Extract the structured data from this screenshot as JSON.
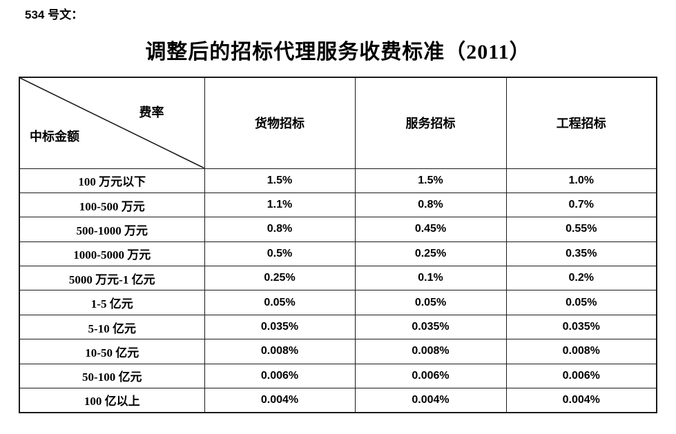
{
  "doc_label": "534 号文：",
  "title": "调整后的招标代理服务收费标准（2011）",
  "table": {
    "corner": {
      "top_right": "费率",
      "bottom_left": "中标金额"
    },
    "columns": [
      "货物招标",
      "服务招标",
      "工程招标"
    ],
    "rows": [
      {
        "label": "100 万元以下",
        "values": [
          "1.5%",
          "1.5%",
          "1.0%"
        ]
      },
      {
        "label": "100-500 万元",
        "values": [
          "1.1%",
          "0.8%",
          "0.7%"
        ]
      },
      {
        "label": "500-1000 万元",
        "values": [
          "0.8%",
          "0.45%",
          "0.55%"
        ]
      },
      {
        "label": "1000-5000 万元",
        "values": [
          "0.5%",
          "0.25%",
          "0.35%"
        ]
      },
      {
        "label": "5000 万元-1 亿元",
        "values": [
          "0.25%",
          "0.1%",
          "0.2%"
        ]
      },
      {
        "label": "1-5 亿元",
        "values": [
          "0.05%",
          "0.05%",
          "0.05%"
        ]
      },
      {
        "label": "5-10 亿元",
        "values": [
          "0.035%",
          "0.035%",
          "0.035%"
        ]
      },
      {
        "label": "10-50 亿元",
        "values": [
          "0.008%",
          "0.008%",
          "0.008%"
        ]
      },
      {
        "label": "50-100 亿元",
        "values": [
          "0.006%",
          "0.006%",
          "0.006%"
        ]
      },
      {
        "label": "100 亿以上",
        "values": [
          "0.004%",
          "0.004%",
          "0.004%"
        ]
      }
    ]
  },
  "colors": {
    "text": "#000000",
    "border": "#1a1a1a",
    "background": "#ffffff"
  }
}
